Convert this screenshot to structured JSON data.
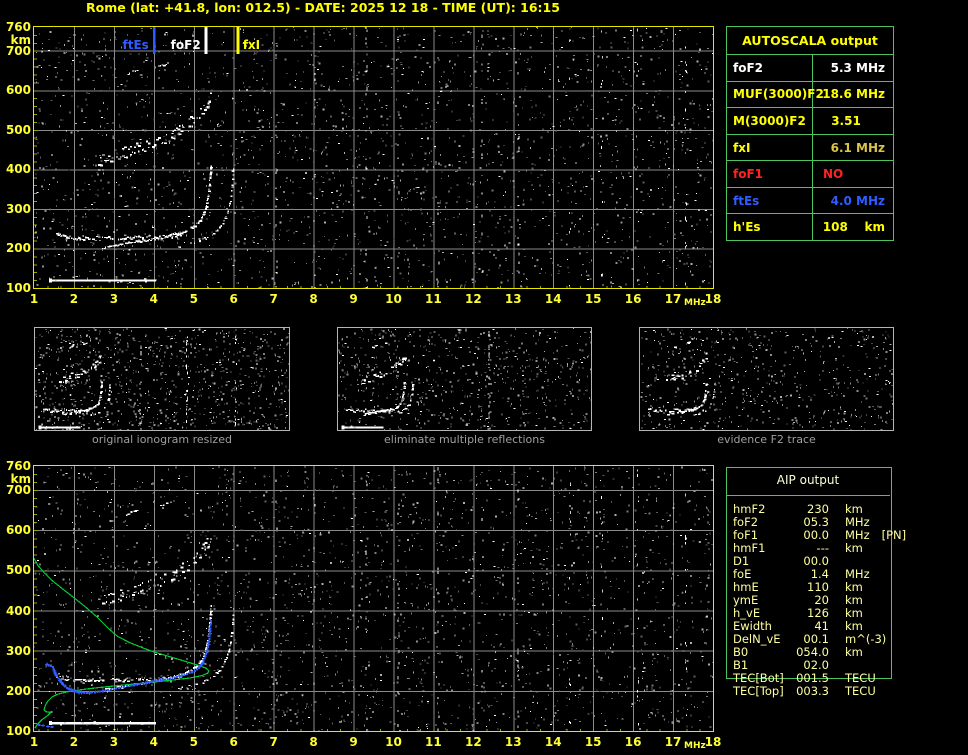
{
  "title": "Rome (lat: +41.8, lon: 012.5) - DATE: 2025 12 18 - TIME (UT): 16:15",
  "colors": {
    "title": "#ffff00",
    "axis_labels": "#ffff33",
    "plot_border": "#e6e600",
    "grid": "#8a8a8a",
    "table_border": "#4ec45e",
    "blue": "#2e5cff",
    "green_profile": "#00cc33",
    "red": "#ff2222",
    "yellow": "#ffff00",
    "white": "#ffffff",
    "caption_gray": "#9f9f9f"
  },
  "top_plot": {
    "y_axis": {
      "top": "760",
      "unit": "km",
      "ticks": [
        "700",
        "600",
        "500",
        "400",
        "300",
        "200",
        "100"
      ]
    },
    "x_axis": {
      "ticks": [
        "1",
        "2",
        "3",
        "4",
        "5",
        "6",
        "7",
        "8",
        "9",
        "10",
        "11",
        "12",
        "13",
        "14",
        "15",
        "16",
        "17",
        "18"
      ],
      "unit": "MHz"
    },
    "markers": [
      {
        "label": "ftEs",
        "freq": 4.0,
        "color": "#2e5cff",
        "anchor": "end"
      },
      {
        "label": "foF2",
        "freq": 5.3,
        "color": "#ffffff",
        "anchor": "end"
      },
      {
        "label": "fxI",
        "freq": 6.1,
        "color": "#ffff00",
        "anchor": "start"
      }
    ]
  },
  "autoscala_table": {
    "header": "AUTOSCALA output",
    "rows": [
      {
        "label": "foF2",
        "value": "5.3 MHz",
        "color": "#ffffff",
        "align": "right"
      },
      {
        "label": "MUF(3000)F2",
        "value": "18.6 MHz",
        "color": "#ffff00",
        "align": "right"
      },
      {
        "label": "M(3000)F2",
        "value": "3.51",
        "color": "#ffff00",
        "align": "center"
      },
      {
        "label": "fxI",
        "value": "6.1 MHz",
        "color": "#ffff00",
        "value_color": "#d9c44a",
        "align": "right"
      },
      {
        "label": "foF1",
        "value": "NO",
        "color": "#ff2222",
        "align": "left"
      },
      {
        "label": "ftEs",
        "value": "4.0 MHz",
        "color": "#2e5cff",
        "align": "right"
      },
      {
        "label": "h'Es",
        "value": "108    km",
        "color": "#ffff00",
        "align": "right"
      }
    ]
  },
  "thumbnails": [
    {
      "caption": "original ionogram resized"
    },
    {
      "caption": "eliminate multiple reflections"
    },
    {
      "caption": "evidence F2 trace"
    }
  ],
  "aip_table": {
    "header": "AIP output",
    "rows": [
      {
        "label": "hmF2",
        "value": "230",
        "unit": "km",
        "extra": ""
      },
      {
        "label": "foF2",
        "value": "05.3",
        "unit": "MHz",
        "extra": ""
      },
      {
        "label": "foF1",
        "value": "00.0",
        "unit": "MHz",
        "extra": "[PN]"
      },
      {
        "label": "hmF1",
        "value": "---",
        "unit": "km",
        "extra": ""
      },
      {
        "label": "D1",
        "value": "00.0",
        "unit": "",
        "extra": ""
      },
      {
        "label": "foE",
        "value": "1.4",
        "unit": "MHz",
        "extra": ""
      },
      {
        "label": "hmE",
        "value": "110",
        "unit": "km",
        "extra": ""
      },
      {
        "label": "ymE",
        "value": "20",
        "unit": "km",
        "extra": ""
      },
      {
        "label": "h_vE",
        "value": "126",
        "unit": "km",
        "extra": ""
      },
      {
        "label": "Ewidth",
        "value": "41",
        "unit": "km",
        "extra": ""
      },
      {
        "label": "DelN_vE",
        "value": "00.1",
        "unit": "m^(-3)",
        "extra": ""
      },
      {
        "label": "B0",
        "value": "054.0",
        "unit": "km",
        "extra": ""
      },
      {
        "label": "B1",
        "value": "02.0",
        "unit": "",
        "extra": ""
      },
      {
        "label": "TEC[Bot]",
        "value": "001.5",
        "unit": "TECU",
        "extra": ""
      },
      {
        "label": "TEC[Top]",
        "value": "003.3",
        "unit": "TECU",
        "extra": ""
      }
    ]
  },
  "chart_data": [
    {
      "id": "top_ionogram",
      "type": "scatter",
      "title": "Rome ionogram 2025-12-18 16:15 UT",
      "xlabel": "MHz",
      "ylabel": "km",
      "xlim": [
        1,
        18
      ],
      "ylim": [
        100,
        760
      ],
      "grid": true,
      "critical_frequencies": {
        "ftEs_MHz": 4.0,
        "foF2_MHz": 5.3,
        "fxI_MHz": 6.1
      },
      "e_layer_trace": {
        "km": 122,
        "f_start": 1.45,
        "f_end": 4.05
      },
      "f_trace_horizontal": [
        [
          1.55,
          238
        ],
        [
          1.8,
          230
        ],
        [
          2.1,
          226
        ],
        [
          2.4,
          228
        ],
        [
          2.8,
          230
        ],
        [
          3.2,
          228
        ],
        [
          3.6,
          231
        ],
        [
          4.0,
          229
        ],
        [
          4.4,
          232
        ],
        [
          4.7,
          235
        ]
      ],
      "o_mode_cusp": [
        [
          2.7,
          203
        ],
        [
          3.1,
          210
        ],
        [
          3.5,
          217
        ],
        [
          3.9,
          224
        ],
        [
          4.2,
          230
        ],
        [
          4.5,
          237
        ],
        [
          4.75,
          245
        ],
        [
          4.95,
          255
        ],
        [
          5.1,
          267
        ],
        [
          5.2,
          282
        ],
        [
          5.28,
          300
        ],
        [
          5.33,
          325
        ],
        [
          5.37,
          355
        ],
        [
          5.4,
          390
        ],
        [
          5.42,
          415
        ]
      ],
      "x_mode_cusp": [
        [
          4.6,
          206
        ],
        [
          5.0,
          215
        ],
        [
          5.3,
          228
        ],
        [
          5.55,
          245
        ],
        [
          5.72,
          265
        ],
        [
          5.85,
          295
        ],
        [
          5.92,
          330
        ],
        [
          5.96,
          370
        ],
        [
          5.98,
          410
        ]
      ],
      "second_hop_trace": [
        [
          2.6,
          415
        ],
        [
          3.0,
          426
        ],
        [
          3.4,
          440
        ],
        [
          3.8,
          452
        ],
        [
          4.05,
          461
        ],
        [
          4.3,
          472
        ],
        [
          4.55,
          486
        ],
        [
          4.75,
          500
        ],
        [
          4.95,
          515
        ],
        [
          5.1,
          530
        ],
        [
          5.25,
          548
        ],
        [
          5.35,
          565
        ],
        [
          5.42,
          582
        ]
      ],
      "third_hop_fragments": [
        [
          [
            3.3,
            638
          ],
          [
            3.45,
            648
          ],
          [
            3.6,
            655
          ]
        ],
        [
          [
            4.15,
            663
          ],
          [
            4.3,
            668
          ],
          [
            4.45,
            672
          ]
        ]
      ],
      "interference_columns_mhz": [
        7.05,
        8.0,
        9.3,
        10.1,
        11.1,
        12.2,
        13.1,
        14.4,
        15.2,
        16.1,
        17.3
      ]
    },
    {
      "id": "bottom_profilogram",
      "type": "scatter",
      "xlim": [
        1,
        18
      ],
      "ylim": [
        100,
        760
      ],
      "electron_density_profile_green": [
        [
          1.0,
          530
        ],
        [
          1.1,
          512
        ],
        [
          1.25,
          495
        ],
        [
          1.45,
          475
        ],
        [
          1.7,
          455
        ],
        [
          2.0,
          432
        ],
        [
          2.3,
          408
        ],
        [
          2.6,
          382
        ],
        [
          2.9,
          352
        ],
        [
          3.1,
          335
        ],
        [
          3.4,
          320
        ],
        [
          3.7,
          308
        ],
        [
          4.0,
          297
        ],
        [
          4.4,
          285
        ],
        [
          4.8,
          273
        ],
        [
          5.1,
          264
        ],
        [
          5.3,
          257
        ],
        [
          5.38,
          250
        ],
        [
          5.35,
          244
        ],
        [
          5.2,
          238
        ],
        [
          4.9,
          232
        ],
        [
          4.4,
          226
        ],
        [
          3.8,
          220
        ],
        [
          3.2,
          214
        ],
        [
          2.7,
          209
        ],
        [
          2.2,
          203
        ],
        [
          1.85,
          198
        ],
        [
          1.6,
          192
        ],
        [
          1.45,
          185
        ],
        [
          1.35,
          175
        ],
        [
          1.28,
          163
        ],
        [
          1.25,
          152
        ],
        [
          1.3,
          148
        ],
        [
          1.42,
          146
        ],
        [
          1.35,
          139
        ],
        [
          1.2,
          128
        ],
        [
          1.08,
          116
        ],
        [
          1.02,
          107
        ]
      ],
      "scaled_trace_blue": [
        [
          1.3,
          268
        ],
        [
          1.45,
          262
        ],
        [
          1.5,
          247
        ],
        [
          1.55,
          238
        ],
        [
          1.62,
          228
        ],
        [
          1.7,
          218
        ],
        [
          1.8,
          210
        ],
        [
          1.95,
          203
        ],
        [
          2.1,
          199
        ],
        [
          2.3,
          197
        ],
        [
          2.5,
          199
        ],
        [
          2.7,
          202
        ],
        [
          2.9,
          206
        ],
        [
          3.1,
          210
        ],
        [
          3.3,
          214
        ],
        [
          3.6,
          219
        ],
        [
          3.9,
          225
        ],
        [
          4.2,
          230
        ],
        [
          4.5,
          236
        ],
        [
          4.8,
          244
        ],
        [
          5.0,
          252
        ],
        [
          5.1,
          260
        ],
        [
          5.2,
          272
        ],
        [
          5.27,
          288
        ],
        [
          5.32,
          305
        ],
        [
          5.36,
          325
        ],
        [
          5.38,
          345
        ],
        [
          5.4,
          365
        ],
        [
          5.41,
          382
        ]
      ],
      "scaled_e_trace_blue": [
        [
          1.1,
          118
        ],
        [
          1.2,
          116
        ],
        [
          1.32,
          114
        ],
        [
          1.42,
          113
        ]
      ]
    }
  ]
}
